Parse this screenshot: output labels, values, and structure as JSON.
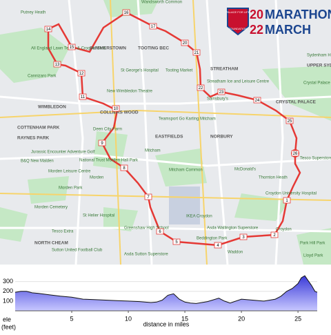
{
  "header": {
    "year_top": "20",
    "line1": "MARATHON",
    "year_bottom": "22",
    "line2": "MARCH",
    "crest_top": "PALACE FOR LIFE",
    "crest_bottom": "FOUNDATION"
  },
  "map": {
    "labels": [
      "Wandsworth Common",
      "Putney Heath",
      "All England Lawn Tennis & Croquet Club",
      "SUMMERSTOWN",
      "TOOTING BEC",
      "STREATHAM",
      "St George's Hospital",
      "Tooting Market",
      "New Wimbledon Theatre",
      "WIMBLEDON",
      "COLLIERS WOOD",
      "Teamsport Go Karting Mitcham",
      "RAYNES PARK",
      "Deen City Farm",
      "EASTFIELDS",
      "NORBURY",
      "CRYSTAL PALACE",
      "Crystal Palace Park",
      "Sydenham Hill Wood",
      "UPPER SYDENHAM",
      "Streatham Ice and Leisure Centre",
      "Sainsbury's",
      "Jurassic Encounter Adventure Golf",
      "B&Q New Malden",
      "National Trust Morden Hall Park",
      "Mitcham",
      "Morden Leisure Centre",
      "Morden",
      "Morden Park",
      "Mitcham Common",
      "McDonald's",
      "Thornton Heath",
      "Croydon University Hospital",
      "Tesco Superstore",
      "St Helier Hospital",
      "Tesco Extra",
      "IKEA Croydon",
      "Greenshaw High School",
      "Asda Wallington Superstore",
      "Beddington Park",
      "Sutton United Football Club",
      "Asda Sutton Superstore",
      "NORTH CHEAM",
      "Croydon",
      "Park Hill Park",
      "Lloyd Park",
      "Cannizaro Park",
      "COTTENHAM PARK",
      "Morden Cemetery",
      "Waddon"
    ]
  },
  "route": {
    "markers": [
      "1",
      "2",
      "3",
      "4",
      "5",
      "6",
      "7",
      "8",
      "9",
      "10",
      "11",
      "12",
      "13",
      "14",
      "15",
      "16",
      "17",
      "20",
      "21",
      "22",
      "23",
      "24",
      "25",
      "26"
    ]
  },
  "chart_data": {
    "type": "area",
    "color": "#3a3ad8",
    "xlabel": "distance in miles",
    "ylabel": [
      "ele",
      "(feet)"
    ],
    "x": [
      0,
      0.5,
      1,
      1.5,
      2,
      3,
      4,
      5,
      6,
      7,
      8,
      9,
      10,
      11,
      12,
      12.5,
      13,
      13.5,
      14,
      14.5,
      15,
      15.5,
      16,
      17,
      18,
      18.5,
      19,
      20,
      21,
      22,
      23,
      23.5,
      24,
      24.5,
      25,
      25.3,
      25.6,
      25.9,
      26.2,
      26.5,
      26.7
    ],
    "values": [
      190,
      200,
      200,
      185,
      180,
      165,
      150,
      140,
      120,
      115,
      110,
      105,
      100,
      95,
      85,
      90,
      110,
      160,
      175,
      120,
      90,
      80,
      75,
      95,
      130,
      100,
      80,
      120,
      110,
      100,
      120,
      150,
      200,
      230,
      280,
      340,
      360,
      310,
      260,
      200,
      190
    ],
    "xlim": [
      0,
      26.7
    ],
    "ylim": [
      0,
      390
    ],
    "xticks": [
      5,
      10,
      15,
      20,
      25
    ],
    "yticks": [
      100,
      200,
      300
    ]
  }
}
